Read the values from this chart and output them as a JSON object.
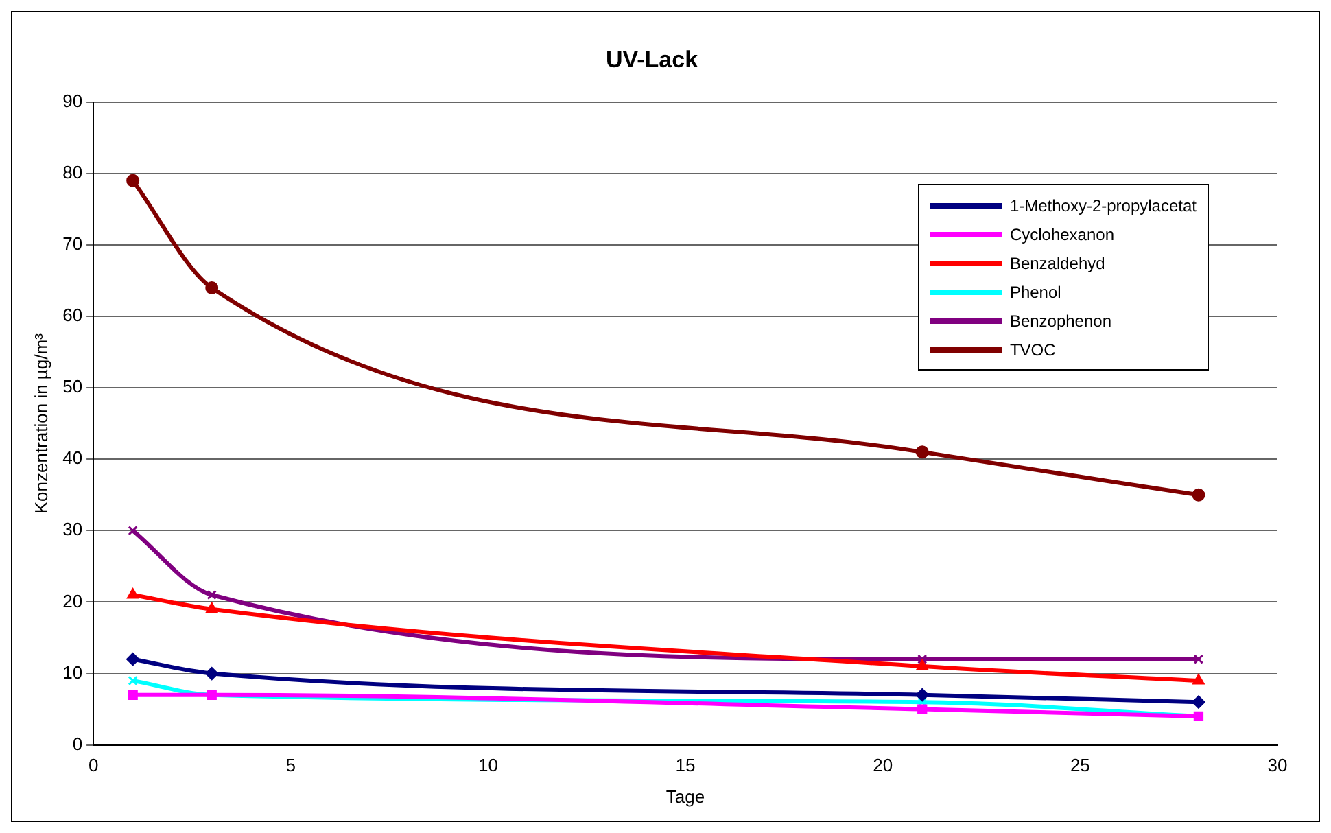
{
  "chart_data": {
    "type": "line",
    "title": "UV-Lack",
    "xlabel": "Tage",
    "ylabel": "Konzentration in µg/m³",
    "x": [
      1,
      3,
      21,
      28
    ],
    "series": [
      {
        "name": "1-Methoxy-2-propylacetat",
        "color": "#000080",
        "marker": "diamond",
        "values": [
          12,
          10,
          7,
          6
        ]
      },
      {
        "name": "Cyclohexanon",
        "color": "#ff00ff",
        "marker": "square",
        "values": [
          7,
          7,
          5,
          4
        ]
      },
      {
        "name": "Benzaldehyd",
        "color": "#ff0000",
        "marker": "triangle",
        "values": [
          21,
          19,
          11,
          9
        ]
      },
      {
        "name": "Phenol",
        "color": "#00ffff",
        "marker": "cross",
        "values": [
          9,
          7,
          6,
          4
        ]
      },
      {
        "name": "Benzophenon",
        "color": "#800080",
        "marker": "cross",
        "values": [
          30,
          21,
          12,
          12
        ]
      },
      {
        "name": "TVOC",
        "color": "#800000",
        "marker": "circle",
        "values": [
          79,
          64,
          41,
          35
        ]
      }
    ],
    "xlim": [
      0,
      30
    ],
    "xticks": [
      0,
      5,
      10,
      15,
      20,
      25,
      30
    ],
    "ylim": [
      0,
      90
    ],
    "yticks": [
      0,
      10,
      20,
      30,
      40,
      50,
      60,
      70,
      80,
      90
    ],
    "grid": "y",
    "legend": "top right"
  }
}
